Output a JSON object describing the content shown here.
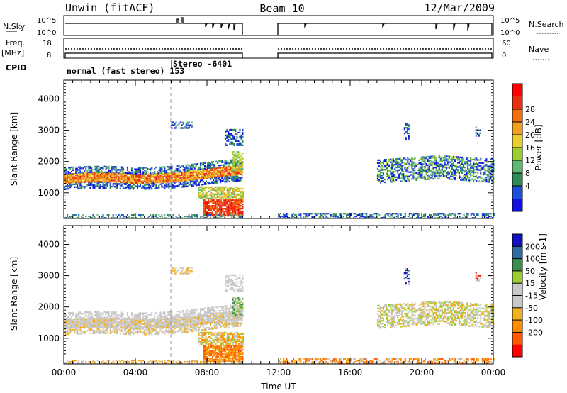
{
  "header": {
    "station": "Unwin (fitACF)",
    "beam": "Beam 10",
    "date": "12/Mar/2009"
  },
  "nsky_panel": {
    "left_label": "N.Sky",
    "left_ticks": [
      "10^5",
      "10^0"
    ],
    "right_label": "N.Search",
    "right_ticks": [
      "10^5",
      "10^0"
    ]
  },
  "freq_panel": {
    "left_label_1": "Freq.",
    "left_label_2": "[MHz]",
    "left_ticks": [
      "18",
      "8"
    ],
    "right_label": "Nave",
    "right_ticks": [
      "60",
      "0"
    ]
  },
  "cpid": {
    "label": "CPID",
    "mode_1": "normal (fast stereo) 153",
    "mode_2": "Stereo -6401"
  },
  "colors": {
    "power_scale": [
      "#1010e0",
      "#1f4fd8",
      "#2e8b57",
      "#5fb870",
      "#9acd32",
      "#e8d030",
      "#f0a020",
      "#f07010",
      "#e83010",
      "#ff0000"
    ],
    "velocity_scale": [
      "#ff0000",
      "#ff5a00",
      "#ff8c00",
      "#f0b020",
      "#c8c8c8",
      "#c8c8c8",
      "#9acd32",
      "#3c8c50",
      "#2e6ba0",
      "#1010c0"
    ]
  },
  "chart_data": [
    {
      "type": "heatmap",
      "name": "power",
      "xlabel": "Time UT",
      "ylabel": "Slant Range [km]",
      "colorbar_label": "Power [dB]",
      "colorbar_ticks": [
        "28",
        "24",
        "20",
        "16",
        "12",
        "8",
        "4"
      ],
      "yticks": [
        "4000",
        "3000",
        "2000",
        "1000"
      ],
      "xlim": [
        0,
        24
      ],
      "ylim": [
        180,
        4600
      ],
      "gap_hours": [
        10.0,
        12.0
      ]
    },
    {
      "type": "heatmap",
      "name": "velocity",
      "xlabel": "Time UT",
      "ylabel": "Slant Range [km]",
      "colorbar_label": "Velocity [m s-1]",
      "colorbar_ticks": [
        "200",
        "100",
        "50",
        "15",
        "-15",
        "-50",
        "-100",
        "-200"
      ],
      "yticks": [
        "4000",
        "3000",
        "2000",
        "1000"
      ],
      "xticks": [
        "00:00",
        "04:00",
        "08:00",
        "12:00",
        "16:00",
        "20:00",
        "00:00"
      ],
      "xlim": [
        0,
        24
      ],
      "ylim": [
        180,
        4600
      ],
      "gap_hours": [
        10.0,
        12.0
      ]
    }
  ]
}
